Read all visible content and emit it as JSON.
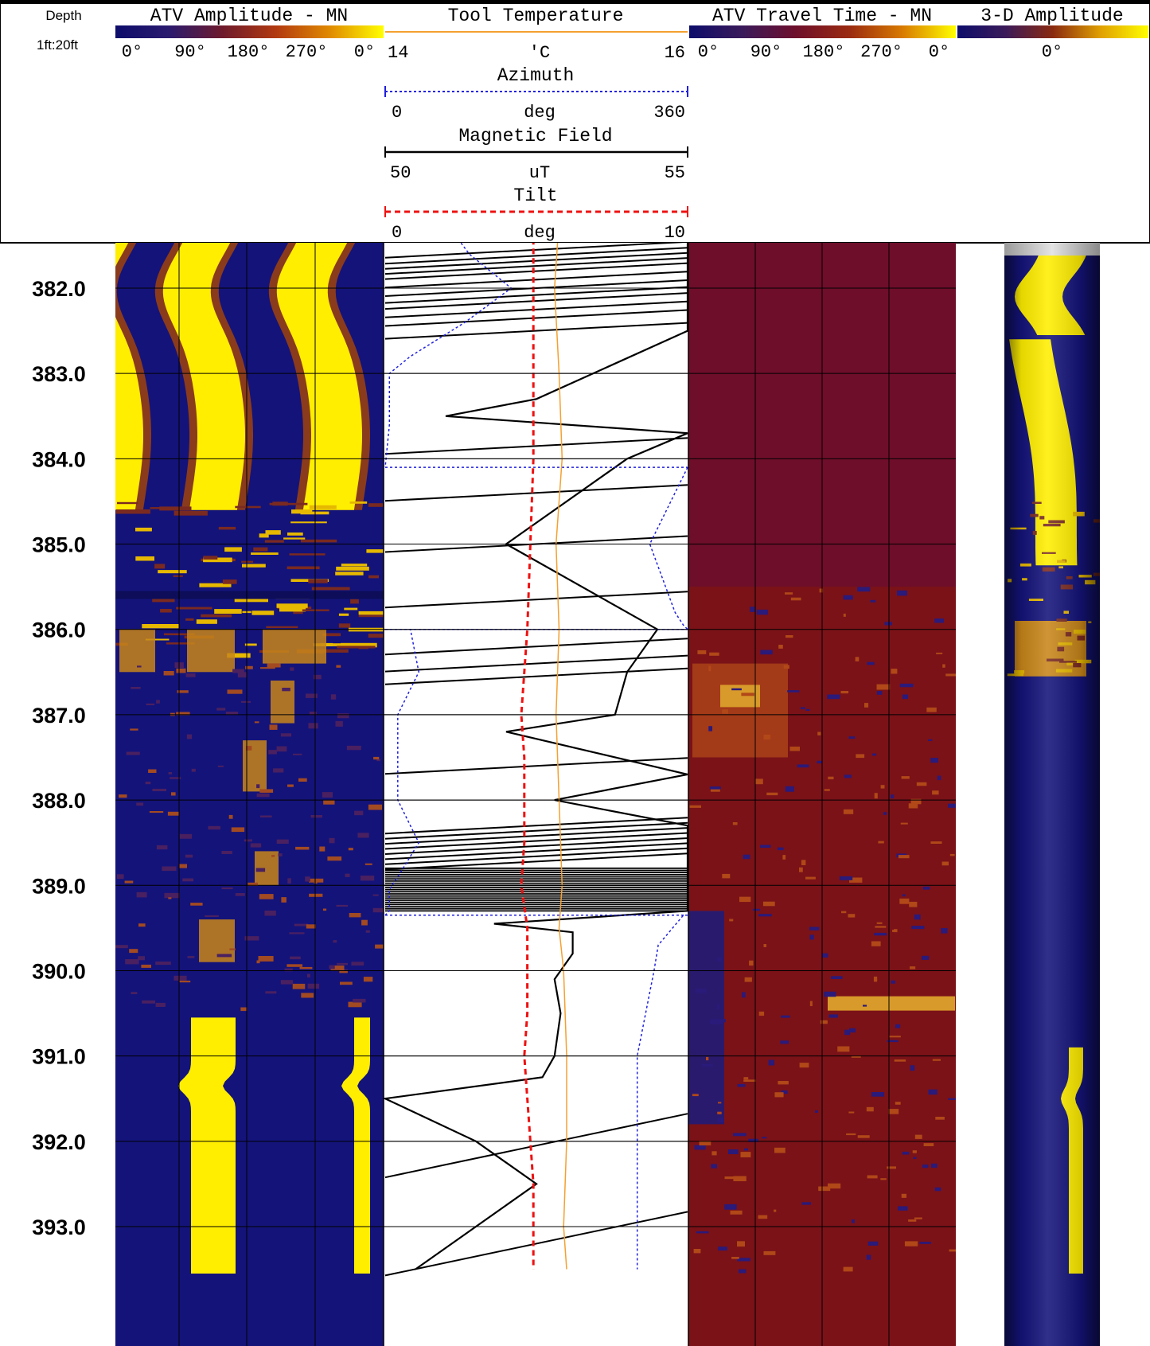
{
  "header": {
    "depth_title": "Depth",
    "depth_scale": "1ft:20ft"
  },
  "tracks": {
    "atv_amplitude": {
      "title": "ATV Amplitude - MN",
      "scale_labels": [
        "0°",
        "90°",
        "180°",
        "270°",
        "0°"
      ],
      "colormap": [
        "#0d0d6b",
        "#2a1a6e",
        "#6e1a2c",
        "#b23a10",
        "#e08a00",
        "#ffff00"
      ]
    },
    "tool_temperature": {
      "title": "Tool Temperature",
      "min": "14",
      "unit": "'C",
      "max": "16",
      "color": "#f5a030"
    },
    "azimuth": {
      "title": "Azimuth",
      "min": "0",
      "unit": "deg",
      "max": "360",
      "color": "#2020e0"
    },
    "magnetic_field": {
      "title": "Magnetic Field",
      "min": "50",
      "unit": "uT",
      "max": "55",
      "color": "#000000"
    },
    "tilt": {
      "title": "Tilt",
      "min": "0",
      "unit": "deg",
      "max": "10",
      "color": "#ee1111"
    },
    "atv_travel_time": {
      "title": "ATV Travel Time - MN",
      "scale_labels": [
        "0°",
        "90°",
        "180°",
        "270°",
        "0°"
      ],
      "colormap": [
        "#0d0d6b",
        "#3a1a5a",
        "#6e0f2c",
        "#9a2a10",
        "#d87a00",
        "#ffff00"
      ]
    },
    "amplitude_3d": {
      "title": "3-D Amplitude",
      "scale_label": "0°",
      "colormap": [
        "#0d0d6b",
        "#3a1a5a",
        "#8a2a10",
        "#e0a000",
        "#ffff00"
      ]
    }
  },
  "chart_data": {
    "type": "line",
    "depth_unit": "ft",
    "depth_range": [
      381.2,
      393.5
    ],
    "depth_ticks": [
      "382.0",
      "383.0",
      "384.0",
      "385.0",
      "386.0",
      "387.0",
      "388.0",
      "389.0",
      "390.0",
      "391.0",
      "392.0",
      "393.0"
    ],
    "grid": true,
    "series": [
      {
        "name": "Tilt",
        "unit": "deg",
        "range": [
          0,
          10
        ],
        "points": [
          [
            381.2,
            4.9
          ],
          [
            382.0,
            4.9
          ],
          [
            383.0,
            4.9
          ],
          [
            384.0,
            4.9
          ],
          [
            385.0,
            4.8
          ],
          [
            386.0,
            4.7
          ],
          [
            386.5,
            4.6
          ],
          [
            387.0,
            4.5
          ],
          [
            387.5,
            4.6
          ],
          [
            388.0,
            4.6
          ],
          [
            388.5,
            4.6
          ],
          [
            389.0,
            4.5
          ],
          [
            389.5,
            4.7
          ],
          [
            390.0,
            4.7
          ],
          [
            390.5,
            4.7
          ],
          [
            391.0,
            4.6
          ],
          [
            391.5,
            4.7
          ],
          [
            392.0,
            4.8
          ],
          [
            392.5,
            4.9
          ],
          [
            393.0,
            4.9
          ],
          [
            393.5,
            4.9
          ]
        ]
      },
      {
        "name": "Tool Temperature",
        "unit": "'C",
        "range": [
          14,
          16
        ],
        "points": [
          [
            381.2,
            15.15
          ],
          [
            382.0,
            15.12
          ],
          [
            383.0,
            15.15
          ],
          [
            384.0,
            15.17
          ],
          [
            385.0,
            15.13
          ],
          [
            386.0,
            15.15
          ],
          [
            387.0,
            15.13
          ],
          [
            388.0,
            15.15
          ],
          [
            389.0,
            15.17
          ],
          [
            389.5,
            15.15
          ],
          [
            390.0,
            15.18
          ],
          [
            391.0,
            15.2
          ],
          [
            392.0,
            15.2
          ],
          [
            393.0,
            15.18
          ],
          [
            393.5,
            15.2
          ]
        ]
      },
      {
        "name": "Azimuth",
        "unit": "deg",
        "range": [
          0,
          360
        ],
        "points": [
          [
            381.2,
            70
          ],
          [
            381.6,
            100
          ],
          [
            382.0,
            150
          ],
          [
            382.4,
            95
          ],
          [
            382.8,
            30
          ],
          [
            383.0,
            5
          ],
          [
            383.6,
            5
          ],
          [
            384.1,
            360
          ],
          [
            385.0,
            315
          ],
          [
            385.8,
            345
          ],
          [
            385.95,
            355
          ],
          [
            386.0,
            30
          ],
          [
            386.5,
            40
          ],
          [
            387.0,
            15
          ],
          [
            388.0,
            15
          ],
          [
            388.5,
            40
          ],
          [
            388.9,
            15
          ],
          [
            389.05,
            5
          ],
          [
            389.3,
            5
          ],
          [
            389.35,
            355
          ],
          [
            389.7,
            325
          ],
          [
            390.0,
            320
          ],
          [
            391.0,
            300
          ],
          [
            392.0,
            300
          ],
          [
            393.0,
            300
          ],
          [
            393.5,
            300
          ]
        ]
      },
      {
        "name": "Magnetic Field",
        "unit": "uT",
        "range": [
          50,
          55
        ],
        "points": [
          [
            381.2,
            53.5
          ],
          [
            381.35,
            55.0
          ],
          [
            382.5,
            55.0
          ],
          [
            383.3,
            52.5
          ],
          [
            383.5,
            51.0
          ],
          [
            383.7,
            55.0
          ],
          [
            384.0,
            54.0
          ],
          [
            385.0,
            52.0
          ],
          [
            386.0,
            54.5
          ],
          [
            386.5,
            54.0
          ],
          [
            387.0,
            53.8
          ],
          [
            387.2,
            52.0
          ],
          [
            387.7,
            55.0
          ],
          [
            388.0,
            52.8
          ],
          [
            388.3,
            55.0
          ],
          [
            388.8,
            55.0
          ],
          [
            389.0,
            55.0
          ],
          [
            389.3,
            55.0
          ],
          [
            389.45,
            51.8
          ],
          [
            389.55,
            53.1
          ],
          [
            389.8,
            53.1
          ],
          [
            390.1,
            52.8
          ],
          [
            390.5,
            52.9
          ],
          [
            391.0,
            52.8
          ],
          [
            391.25,
            52.6
          ],
          [
            391.5,
            50.0
          ],
          [
            392.0,
            51.5
          ],
          [
            392.5,
            52.5
          ],
          [
            393.0,
            51.5
          ],
          [
            393.5,
            50.5
          ]
        ]
      }
    ]
  }
}
